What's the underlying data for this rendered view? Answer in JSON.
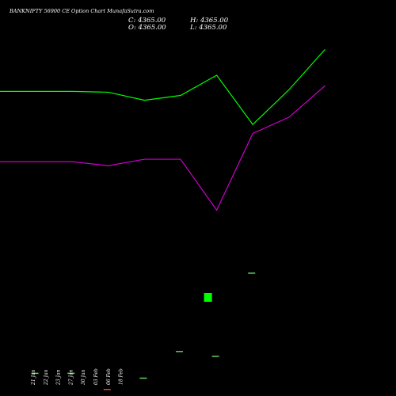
{
  "header": {
    "title": "BANKNIFTY 56900   CE Option   Chart MunafaSutra.com",
    "close": "C: 4365.00",
    "open": "O: 4365.00",
    "high": "H: 4365.00",
    "low": "L: 4365.00"
  },
  "colors": {
    "background": "#000000",
    "line_upper": "#00ff00",
    "line_lower": "#cc00cc",
    "bull_candle": "#66cc66",
    "bear_candle": "#ff3333",
    "volume_bar": "#00ff00",
    "text": "#ffffff"
  },
  "chart_data": {
    "type": "line",
    "title": "BANKNIFTY 56900   CE Option   Chart MunafaSutra.com",
    "categories": [
      "21 Jan",
      "22 Jan",
      "23 Jan",
      "27 Jan",
      "30 Jan",
      "03 Feb",
      "06 Feb",
      "18 Feb"
    ],
    "series": [
      {
        "type": "line",
        "color": "#00ff00",
        "x": [
          0,
          1,
          2,
          3,
          4,
          5,
          6,
          7,
          8,
          9
        ],
        "values": [
          0.8,
          0.8,
          0.8,
          0.79,
          0.69,
          0.75,
          1.0,
          0.39,
          0.82,
          1.32
        ]
      },
      {
        "type": "line",
        "color": "#cc00cc",
        "x": [
          0,
          1,
          2,
          3,
          4,
          5,
          6,
          7,
          8,
          9
        ],
        "values": [
          -0.07,
          -0.07,
          -0.07,
          -0.12,
          -0.04,
          -0.04,
          -0.67,
          0.28,
          0.48,
          0.87
        ]
      },
      {
        "type": "candles",
        "values": [
          {
            "x": 1,
            "open": -2.69,
            "close": -2.69,
            "color": "#66cc66"
          },
          {
            "x": 2,
            "open": -2.69,
            "close": -2.69,
            "color": "#66cc66"
          },
          {
            "x": 3,
            "open": -2.89,
            "close": -2.89,
            "color": "#ff3333"
          },
          {
            "x": 4,
            "open": -2.75,
            "close": -2.75,
            "color": "#66cc66"
          },
          {
            "x": 5,
            "open": -2.42,
            "close": -2.42,
            "color": "#66cc66"
          },
          {
            "x": 6,
            "open": -2.48,
            "close": -2.48,
            "color": "#66cc66"
          },
          {
            "x": 7,
            "open": -1.45,
            "close": -1.45,
            "color": "#66cc66"
          }
        ]
      },
      {
        "type": "volume",
        "values": [
          {
            "x": 6,
            "value": 1
          }
        ]
      }
    ],
    "ylim": [
      -3.8,
      2.0
    ],
    "xlim": [
      0,
      10
    ],
    "grid": false
  }
}
